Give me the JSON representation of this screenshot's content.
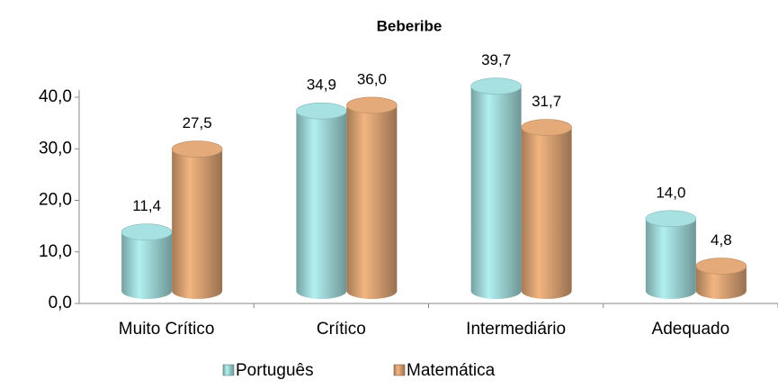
{
  "chart_data": {
    "type": "bar",
    "title": "Beberibe",
    "categories": [
      "Muito Crítico",
      "Crítico",
      "Intermediário",
      "Adequado"
    ],
    "series": [
      {
        "name": "Português",
        "color": "#9fd6d6",
        "values": [
          11.4,
          34.9,
          39.7,
          14.0
        ],
        "value_labels": [
          "11,4",
          "34,9",
          "39,7",
          "14,0"
        ]
      },
      {
        "name": "Matemática",
        "color": "#d9a273",
        "values": [
          27.5,
          36.0,
          31.7,
          4.8
        ],
        "value_labels": [
          "27,5",
          "36,0",
          "31,7",
          "4,8"
        ]
      }
    ],
    "ylim": [
      0,
      40
    ],
    "yticks": [
      {
        "value": 0,
        "label": "0,0"
      },
      {
        "value": 10,
        "label": "10,0"
      },
      {
        "value": 20,
        "label": "20,0"
      },
      {
        "value": 30,
        "label": "30,0"
      },
      {
        "value": 40,
        "label": "40,0"
      }
    ],
    "legend": "bottom"
  }
}
